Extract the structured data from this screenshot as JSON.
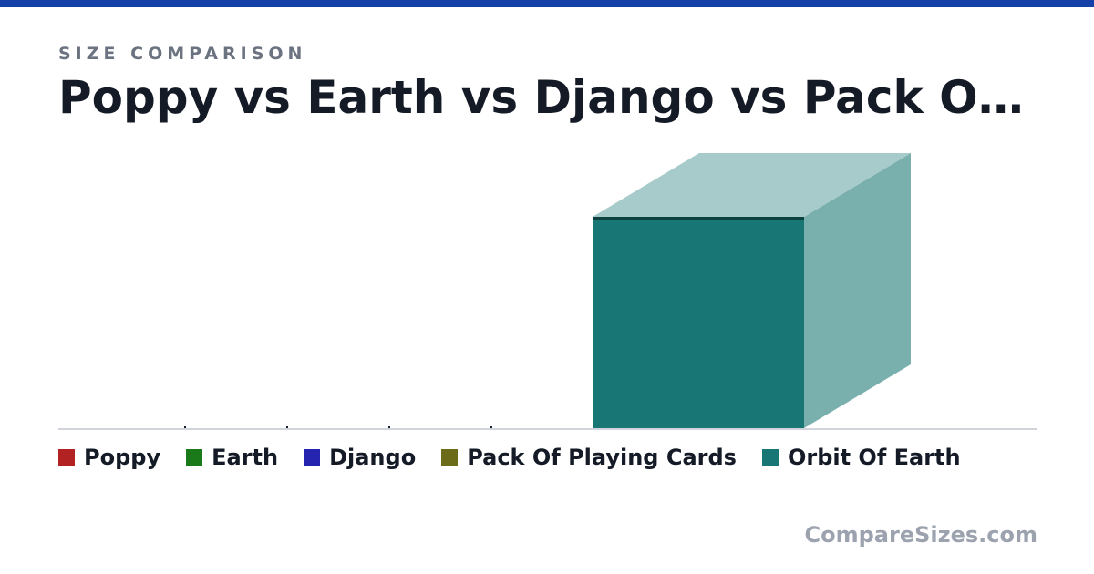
{
  "header": {
    "eyebrow": "SIZE COMPARISON",
    "title": "Poppy vs Earth vs Django vs Pack Of Playing Cards vs Orbit Of Earth"
  },
  "brand": "CompareSizes.com",
  "colors": {
    "top_bar": "#1540a8"
  },
  "chart_data": {
    "type": "bar",
    "categories": [
      "Poppy",
      "Earth",
      "Django",
      "Pack Of Playing Cards",
      "Orbit Of Earth"
    ],
    "values": [
      0,
      0,
      0,
      0,
      1
    ],
    "ylim": [
      0,
      1
    ],
    "legend_position": "bottom",
    "colors": {
      "Poppy": "#b22222",
      "Earth": "#1a7a1a",
      "Django": "#2424b0",
      "Pack Of Playing Cards": "#6b6b1a",
      "Orbit Of Earth": "#187674"
    }
  }
}
